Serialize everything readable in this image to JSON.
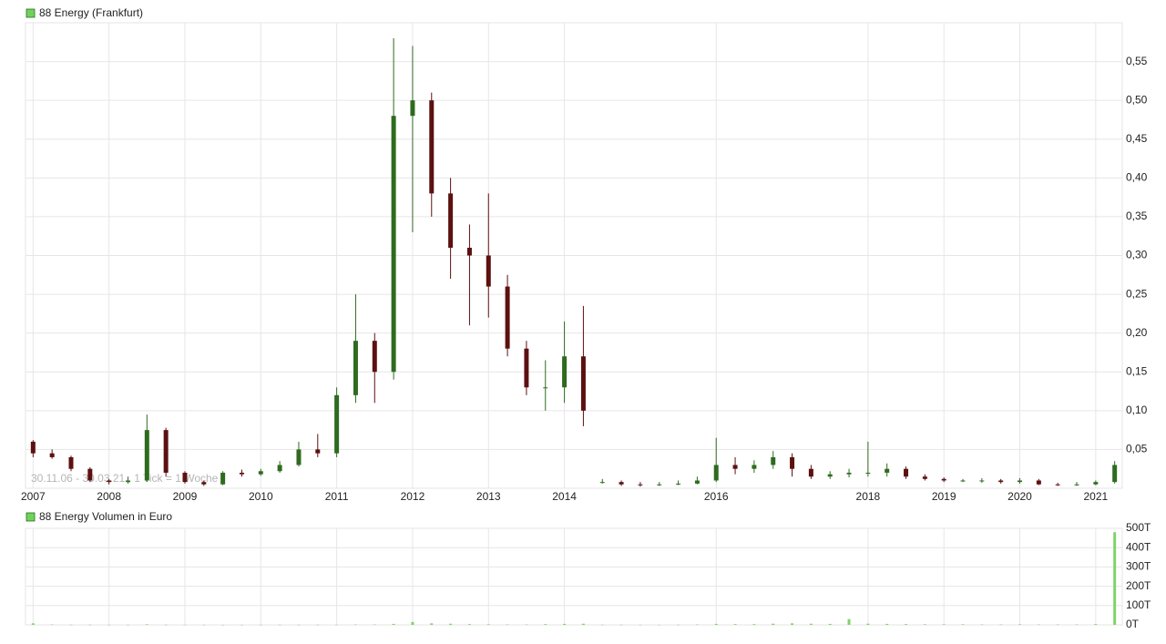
{
  "chart_data": [
    {
      "type": "candlestick",
      "legend": "88 Energy (Frankfurt)",
      "legend_color": "#6fd35a",
      "annotation": "30.11.06 - 30.03.21 , 1 Tick = 1 Woche",
      "up_color": "#2e6b1f",
      "down_color": "#5c1010",
      "x": [
        2007,
        2007.25,
        2007.5,
        2007.75,
        2008,
        2008.25,
        2008.5,
        2008.75,
        2009,
        2009.25,
        2009.5,
        2009.75,
        2010,
        2010.25,
        2010.5,
        2010.75,
        2011,
        2011.25,
        2011.5,
        2011.75,
        2012,
        2012.25,
        2012.5,
        2012.75,
        2013,
        2013.25,
        2013.5,
        2013.75,
        2014,
        2014.25,
        2014.5,
        2014.75,
        2015,
        2015.25,
        2015.5,
        2015.75,
        2016,
        2016.25,
        2016.5,
        2016.75,
        2017,
        2017.25,
        2017.5,
        2017.75,
        2018,
        2018.25,
        2018.5,
        2018.75,
        2019,
        2019.25,
        2019.5,
        2019.75,
        2020,
        2020.25,
        2020.5,
        2020.75,
        2021,
        2021.25
      ],
      "open": [
        0.06,
        0.045,
        0.04,
        0.025,
        0.01,
        0.008,
        0.01,
        0.075,
        0.02,
        0.008,
        0.005,
        0.02,
        0.018,
        0.022,
        0.03,
        0.05,
        0.045,
        0.12,
        0.19,
        0.15,
        0.48,
        0.5,
        0.38,
        0.31,
        0.3,
        0.26,
        0.18,
        0.13,
        0.13,
        0.17,
        0.008,
        0.008,
        0.005,
        0.004,
        0.005,
        0.006,
        0.01,
        0.03,
        0.025,
        0.03,
        0.04,
        0.025,
        0.015,
        0.018,
        0.02,
        0.02,
        0.025,
        0.015,
        0.012,
        0.01,
        0.01,
        0.01,
        0.008,
        0.01,
        0.005,
        0.004,
        0.005,
        0.008
      ],
      "high": [
        0.062,
        0.05,
        0.042,
        0.027,
        0.012,
        0.015,
        0.095,
        0.078,
        0.022,
        0.01,
        0.022,
        0.024,
        0.025,
        0.035,
        0.06,
        0.07,
        0.13,
        0.25,
        0.2,
        0.58,
        0.57,
        0.51,
        0.4,
        0.34,
        0.38,
        0.275,
        0.19,
        0.165,
        0.215,
        0.235,
        0.012,
        0.01,
        0.008,
        0.008,
        0.01,
        0.015,
        0.065,
        0.04,
        0.036,
        0.048,
        0.045,
        0.03,
        0.022,
        0.025,
        0.06,
        0.032,
        0.028,
        0.018,
        0.014,
        0.012,
        0.013,
        0.012,
        0.013,
        0.012,
        0.007,
        0.008,
        0.01,
        0.035
      ],
      "low": [
        0.04,
        0.038,
        0.022,
        0.008,
        0.005,
        0.006,
        0.008,
        0.015,
        0.006,
        0.003,
        0.004,
        0.015,
        0.016,
        0.02,
        0.028,
        0.04,
        0.04,
        0.11,
        0.11,
        0.14,
        0.33,
        0.35,
        0.27,
        0.21,
        0.22,
        0.17,
        0.12,
        0.1,
        0.11,
        0.08,
        0.006,
        0.003,
        0.002,
        0.003,
        0.004,
        0.005,
        0.008,
        0.018,
        0.02,
        0.025,
        0.015,
        0.012,
        0.012,
        0.014,
        0.015,
        0.015,
        0.012,
        0.01,
        0.008,
        0.008,
        0.007,
        0.006,
        0.006,
        0.004,
        0.003,
        0.003,
        0.004,
        0.006
      ],
      "close": [
        0.045,
        0.04,
        0.025,
        0.01,
        0.008,
        0.01,
        0.075,
        0.02,
        0.008,
        0.005,
        0.02,
        0.018,
        0.022,
        0.03,
        0.05,
        0.045,
        0.12,
        0.19,
        0.15,
        0.48,
        0.5,
        0.38,
        0.31,
        0.3,
        0.26,
        0.18,
        0.13,
        0.13,
        0.17,
        0.1,
        0.008,
        0.005,
        0.004,
        0.005,
        0.006,
        0.01,
        0.03,
        0.025,
        0.03,
        0.04,
        0.025,
        0.015,
        0.018,
        0.02,
        0.02,
        0.025,
        0.015,
        0.012,
        0.01,
        0.01,
        0.01,
        0.008,
        0.01,
        0.005,
        0.004,
        0.005,
        0.008,
        0.03
      ],
      "xlim": [
        2006.9,
        2021.35
      ],
      "xticks": [
        2007,
        2008,
        2009,
        2010,
        2011,
        2012,
        2013,
        2014,
        2016,
        2018,
        2019,
        2020,
        2021
      ],
      "ylim": [
        0,
        0.6
      ],
      "yticks": [
        {
          "value": 0.05,
          "label": "0,05"
        },
        {
          "value": 0.1,
          "label": "0,10"
        },
        {
          "value": 0.15,
          "label": "0,15"
        },
        {
          "value": 0.2,
          "label": "0,20"
        },
        {
          "value": 0.25,
          "label": "0,25"
        },
        {
          "value": 0.3,
          "label": "0,30"
        },
        {
          "value": 0.35,
          "label": "0,35"
        },
        {
          "value": 0.4,
          "label": "0,40"
        },
        {
          "value": 0.45,
          "label": "0,45"
        },
        {
          "value": 0.5,
          "label": "0,50"
        },
        {
          "value": 0.55,
          "label": "0,55"
        }
      ],
      "grid": true
    },
    {
      "type": "bar",
      "legend": "88 Energy Volumen in Euro",
      "legend_color": "#6fd35a",
      "color": "#7fd36b",
      "x": [
        2007,
        2007.25,
        2007.5,
        2007.75,
        2008,
        2008.25,
        2008.5,
        2008.75,
        2009,
        2009.25,
        2009.5,
        2009.75,
        2010,
        2010.25,
        2010.5,
        2010.75,
        2011,
        2011.25,
        2011.5,
        2011.75,
        2012,
        2012.25,
        2012.5,
        2012.75,
        2013,
        2013.25,
        2013.5,
        2013.75,
        2014,
        2014.25,
        2014.5,
        2014.75,
        2015,
        2015.25,
        2015.5,
        2015.75,
        2016,
        2016.25,
        2016.5,
        2016.75,
        2017,
        2017.25,
        2017.5,
        2017.75,
        2018,
        2018.25,
        2018.5,
        2018.75,
        2019,
        2019.25,
        2019.5,
        2019.75,
        2020,
        2020.25,
        2020.5,
        2020.75,
        2021,
        2021.25
      ],
      "values": [
        8000,
        2000,
        1000,
        1000,
        500,
        500,
        3000,
        1000,
        500,
        500,
        500,
        500,
        500,
        1000,
        1000,
        1000,
        1000,
        2000,
        2000,
        5000,
        15000,
        8000,
        6000,
        4000,
        3000,
        2000,
        2000,
        4000,
        5000,
        6000,
        1000,
        1000,
        500,
        500,
        1000,
        2000,
        5000,
        4000,
        4000,
        6000,
        8000,
        6000,
        5000,
        30000,
        6000,
        5000,
        4000,
        3000,
        3000,
        3000,
        2000,
        2000,
        3000,
        2000,
        2000,
        2000,
        4000,
        480000
      ],
      "xlim": [
        2006.9,
        2021.35
      ],
      "ylim": [
        0,
        500000
      ],
      "yticks": [
        {
          "value": 0,
          "label": "0T"
        },
        {
          "value": 100000,
          "label": "100T"
        },
        {
          "value": 200000,
          "label": "200T"
        },
        {
          "value": 300000,
          "label": "300T"
        },
        {
          "value": 400000,
          "label": "400T"
        },
        {
          "value": 500000,
          "label": "500T"
        }
      ],
      "grid": true
    }
  ]
}
